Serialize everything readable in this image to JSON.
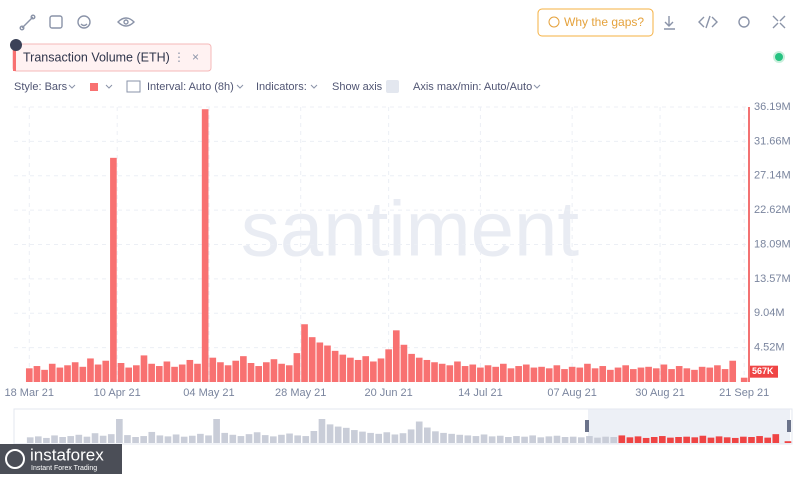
{
  "ui": {
    "gaps_button": "Why the gaps?",
    "metric": "Transaction Volume (ETH)",
    "style": "Style: Bars",
    "interval": "Interval: Auto (8h)",
    "indicators": "Indicators:",
    "show_axis": "Show axis",
    "axis_minmax": "Axis max/min: Auto/Auto",
    "watermark": "santiment",
    "brand": "instaforex",
    "brand_sub": "Instant Forex Trading"
  },
  "chart_data": {
    "type": "bar",
    "color": "#f87171",
    "grid": true,
    "x": [
      "2021-03-18",
      "2021-03-20",
      "2021-03-22",
      "2021-03-24",
      "2021-03-26",
      "2021-03-28",
      "2021-03-30",
      "2021-04-01",
      "2021-04-03",
      "2021-04-05",
      "2021-04-07",
      "2021-04-09",
      "2021-04-11",
      "2021-04-13",
      "2021-04-15",
      "2021-04-17",
      "2021-04-19",
      "2021-04-21",
      "2021-04-23",
      "2021-04-25",
      "2021-04-27",
      "2021-04-29",
      "2021-05-01",
      "2021-05-03",
      "2021-05-05",
      "2021-05-07",
      "2021-05-09",
      "2021-05-11",
      "2021-05-13",
      "2021-05-15",
      "2021-05-17",
      "2021-05-19",
      "2021-05-21",
      "2021-05-23",
      "2021-05-25",
      "2021-05-27",
      "2021-05-29",
      "2021-05-31",
      "2021-06-02",
      "2021-06-04",
      "2021-06-06",
      "2021-06-08",
      "2021-06-10",
      "2021-06-12",
      "2021-06-14",
      "2021-06-16",
      "2021-06-18",
      "2021-06-20",
      "2021-06-22",
      "2021-06-24",
      "2021-06-26",
      "2021-06-28",
      "2021-06-30",
      "2021-07-02",
      "2021-07-04",
      "2021-07-06",
      "2021-07-08",
      "2021-07-10",
      "2021-07-12",
      "2021-07-14",
      "2021-07-16",
      "2021-07-18",
      "2021-07-20",
      "2021-07-22",
      "2021-07-24",
      "2021-07-26",
      "2021-07-28",
      "2021-07-30",
      "2021-08-01",
      "2021-08-03",
      "2021-08-05",
      "2021-08-07",
      "2021-08-09",
      "2021-08-11",
      "2021-08-13",
      "2021-08-15",
      "2021-08-17",
      "2021-08-19",
      "2021-08-21",
      "2021-08-23",
      "2021-08-25",
      "2021-08-27",
      "2021-08-29",
      "2021-08-31",
      "2021-09-02",
      "2021-09-04",
      "2021-09-06",
      "2021-09-08",
      "2021-09-10",
      "2021-09-12",
      "2021-09-14",
      "2021-09-16",
      "2021-09-18",
      "2021-09-21"
    ],
    "values": [
      1.8,
      2.1,
      1.6,
      2.4,
      1.9,
      2.2,
      2.6,
      2.0,
      3.1,
      2.3,
      2.8,
      29.5,
      2.5,
      1.9,
      2.2,
      3.5,
      2.4,
      2.1,
      2.7,
      2.0,
      2.3,
      2.9,
      2.4,
      35.9,
      3.2,
      2.6,
      2.2,
      2.8,
      3.4,
      2.5,
      2.1,
      2.6,
      3.0,
      2.4,
      2.2,
      3.8,
      7.6,
      5.9,
      5.2,
      4.8,
      4.1,
      3.6,
      3.2,
      2.9,
      3.4,
      2.7,
      3.1,
      4.3,
      6.8,
      4.9,
      3.7,
      3.2,
      2.9,
      2.6,
      2.4,
      2.2,
      2.7,
      2.1,
      2.3,
      1.9,
      2.2,
      2.0,
      2.4,
      1.8,
      2.1,
      2.3,
      1.9,
      2.0,
      1.8,
      2.2,
      1.7,
      2.0,
      1.9,
      2.4,
      1.8,
      2.1,
      1.6,
      1.9,
      2.2,
      1.7,
      1.9,
      2.0,
      1.8,
      2.3,
      1.7,
      2.1,
      1.8,
      1.6,
      2.0,
      1.9,
      2.2,
      1.7,
      2.8,
      0.567
    ],
    "value_labels": [
      null,
      null,
      null,
      null,
      null,
      null,
      null,
      null,
      null,
      null,
      null,
      null,
      null,
      null,
      null,
      null,
      null,
      null,
      null,
      null,
      null,
      null,
      null,
      null,
      null,
      null,
      null,
      null,
      null,
      null,
      null,
      null,
      null,
      null,
      null,
      null,
      null,
      null,
      null,
      null,
      null,
      null,
      null,
      null,
      null,
      null,
      null,
      null,
      null,
      null,
      null,
      null,
      null,
      null,
      null,
      null,
      null,
      null,
      null,
      null,
      null,
      null,
      null,
      null,
      null,
      null,
      null,
      null,
      null,
      null,
      null,
      null,
      null,
      null,
      null,
      null,
      null,
      null,
      null,
      null,
      null,
      null,
      null,
      null,
      null,
      null,
      null,
      null,
      null,
      null,
      null,
      null,
      null,
      "567K"
    ],
    "xlim": [
      "2021-03-14",
      "2021-09-22"
    ],
    "xticks": [
      {
        "value": "2021-03-18",
        "label": "18 Mar 21"
      },
      {
        "value": "2021-04-10",
        "label": "10 Apr 21"
      },
      {
        "value": "2021-05-04",
        "label": "04 May 21"
      },
      {
        "value": "2021-05-28",
        "label": "28 May 21"
      },
      {
        "value": "2021-06-20",
        "label": "20 Jun 21"
      },
      {
        "value": "2021-07-14",
        "label": "14 Jul 21"
      },
      {
        "value": "2021-08-07",
        "label": "07 Aug 21"
      },
      {
        "value": "2021-08-30",
        "label": "30 Aug 21"
      },
      {
        "value": "2021-09-21",
        "label": "21 Sep 21"
      }
    ],
    "ylim": [
      0,
      36.19
    ],
    "yticks": [
      {
        "value": 4.52,
        "label": "4.52M"
      },
      {
        "value": 9.04,
        "label": "9.04M"
      },
      {
        "value": 13.57,
        "label": "13.57M"
      },
      {
        "value": 18.09,
        "label": "18.09M"
      },
      {
        "value": 22.62,
        "label": "22.62M"
      },
      {
        "value": 27.14,
        "label": "27.14M"
      },
      {
        "value": 31.66,
        "label": "31.66M"
      },
      {
        "value": 36.19,
        "label": "36.19M"
      }
    ]
  }
}
